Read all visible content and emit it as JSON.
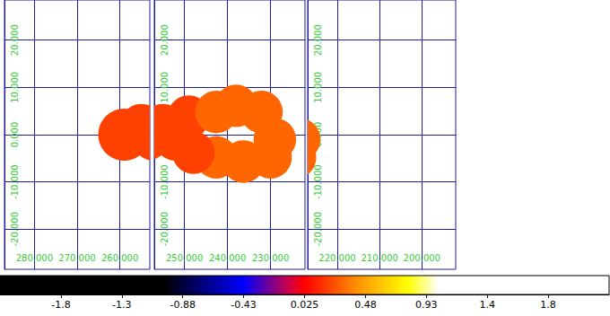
{
  "chart_data": {
    "type": "sky_map",
    "grid": true,
    "panels": [
      {
        "xlim": [
          287,
          253
        ],
        "xticks": [
          {
            "value": 280,
            "label": "280.000"
          },
          {
            "value": 270,
            "label": "270.000"
          },
          {
            "value": 260,
            "label": "260.000"
          }
        ],
        "ylim": [
          -28.5,
          28.5
        ],
        "yticks": [
          {
            "value": -20,
            "label": "-20.000"
          },
          {
            "value": -10,
            "label": "-10.000"
          },
          {
            "value": 0,
            "label": "0.000"
          },
          {
            "value": 10,
            "label": "10.000"
          },
          {
            "value": 20,
            "label": "20.000"
          }
        ]
      },
      {
        "xlim": [
          257,
          222
        ],
        "xticks": [
          {
            "value": 250,
            "label": "250.000"
          },
          {
            "value": 240,
            "label": "240.000"
          },
          {
            "value": 230,
            "label": "230.000"
          }
        ],
        "ylim": [
          -28.5,
          28.5
        ],
        "yticks": [
          {
            "value": -20,
            "label": "-20.000"
          },
          {
            "value": -10,
            "label": "-10.000"
          },
          {
            "value": 0,
            "label": "0.000"
          },
          {
            "value": 10,
            "label": "10.000"
          },
          {
            "value": 20,
            "label": "20.000"
          }
        ]
      },
      {
        "xlim": [
          227,
          192
        ],
        "xticks": [
          {
            "value": 220,
            "label": "220.000"
          },
          {
            "value": 210,
            "label": "210.000"
          },
          {
            "value": 200,
            "label": "200.000"
          }
        ],
        "ylim": [
          -28.5,
          28.5
        ],
        "yticks": [
          {
            "value": -20,
            "label": "-20.000"
          },
          {
            "value": -10,
            "label": "-10.000"
          },
          {
            "value": 0,
            "label": "0.000"
          },
          {
            "value": 10,
            "label": "10.000"
          },
          {
            "value": 20,
            "label": "20.000"
          }
        ]
      }
    ],
    "footprints": [
      {
        "lon": 259,
        "lat": 0,
        "radius": 5.5,
        "value": 0.2
      },
      {
        "lon": 255,
        "lat": 2,
        "radius": 4.5,
        "value": 0.2
      },
      {
        "lon": 252.1,
        "lat": -1,
        "radius": 4.5,
        "value": 0.2
      },
      {
        "lon": 249,
        "lat": 3.8,
        "radius": 4.5,
        "value": 0.2
      },
      {
        "lon": 242.6,
        "lat": 4.8,
        "radius": 4.5,
        "value": 0.3
      },
      {
        "lon": 238,
        "lat": 6.1,
        "radius": 4.5,
        "value": 0.3
      },
      {
        "lon": 232.1,
        "lat": 4.8,
        "radius": 4.5,
        "value": 0.3
      },
      {
        "lon": 229,
        "lat": -1,
        "radius": 4.5,
        "value": 0.3
      },
      {
        "lon": 230,
        "lat": -4.8,
        "radius": 4.5,
        "value": 0.3
      },
      {
        "lon": 236.3,
        "lat": -5.7,
        "radius": 4.5,
        "value": 0.3
      },
      {
        "lon": 242.6,
        "lat": -4.8,
        "radius": 4.5,
        "value": 0.3
      },
      {
        "lon": 247.9,
        "lat": -3.8,
        "radius": 4.5,
        "value": 0.2
      }
    ],
    "colorbar": {
      "range": [
        -2.225,
        2.275
      ],
      "ticks": [
        {
          "value": -1.775,
          "label": "-1.8"
        },
        {
          "value": -1.325,
          "label": "-1.3"
        },
        {
          "value": -0.875,
          "label": "-0.88"
        },
        {
          "value": -0.425,
          "label": "-0.43"
        },
        {
          "value": 0.025,
          "label": "0.025"
        },
        {
          "value": 0.475,
          "label": "0.48"
        },
        {
          "value": 0.925,
          "label": "0.93"
        },
        {
          "value": 1.375,
          "label": "1.4"
        },
        {
          "value": 1.825,
          "label": "1.8"
        }
      ]
    }
  }
}
